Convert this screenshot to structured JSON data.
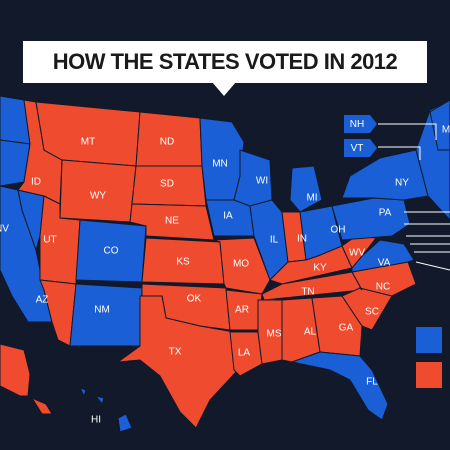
{
  "title": "HOW THE STATES VOTED IN 2012",
  "colors": {
    "background": "#11192a",
    "blue": "#1a5fd6",
    "red": "#ef4b2f",
    "border": "#11192a",
    "callout_line": "#ffffff"
  },
  "legend": {
    "items": [
      {
        "color": "#1a5fd6",
        "label": ""
      },
      {
        "color": "#ef4b2f",
        "label": ""
      }
    ]
  },
  "callouts": [
    {
      "abbr": "NH",
      "party": "blue"
    },
    {
      "abbr": "VT",
      "party": "blue"
    }
  ],
  "states": [
    {
      "abbr": "WA",
      "party": "blue",
      "label": ""
    },
    {
      "abbr": "OR",
      "party": "blue",
      "label": ""
    },
    {
      "abbr": "CA",
      "party": "blue",
      "label": ""
    },
    {
      "abbr": "NV",
      "party": "blue",
      "label": "NV"
    },
    {
      "abbr": "ID",
      "party": "red",
      "label": "ID"
    },
    {
      "abbr": "MT",
      "party": "red",
      "label": "MT"
    },
    {
      "abbr": "WY",
      "party": "red",
      "label": "WY"
    },
    {
      "abbr": "UT",
      "party": "red",
      "label": "UT"
    },
    {
      "abbr": "AZ",
      "party": "red",
      "label": "AZ"
    },
    {
      "abbr": "CO",
      "party": "blue",
      "label": "CO"
    },
    {
      "abbr": "NM",
      "party": "blue",
      "label": "NM"
    },
    {
      "abbr": "ND",
      "party": "red",
      "label": "ND"
    },
    {
      "abbr": "SD",
      "party": "red",
      "label": "SD"
    },
    {
      "abbr": "NE",
      "party": "red",
      "label": "NE"
    },
    {
      "abbr": "KS",
      "party": "red",
      "label": "KS"
    },
    {
      "abbr": "OK",
      "party": "red",
      "label": "OK"
    },
    {
      "abbr": "TX",
      "party": "red",
      "label": "TX"
    },
    {
      "abbr": "MN",
      "party": "blue",
      "label": "MN"
    },
    {
      "abbr": "IA",
      "party": "blue",
      "label": "IA"
    },
    {
      "abbr": "MO",
      "party": "red",
      "label": "MO"
    },
    {
      "abbr": "AR",
      "party": "red",
      "label": "AR"
    },
    {
      "abbr": "LA",
      "party": "red",
      "label": "LA"
    },
    {
      "abbr": "WI",
      "party": "blue",
      "label": "WI"
    },
    {
      "abbr": "IL",
      "party": "blue",
      "label": "IL"
    },
    {
      "abbr": "MI",
      "party": "blue",
      "label": "MI"
    },
    {
      "abbr": "IN",
      "party": "red",
      "label": "IN"
    },
    {
      "abbr": "OH",
      "party": "blue",
      "label": "OH"
    },
    {
      "abbr": "KY",
      "party": "red",
      "label": "KY"
    },
    {
      "abbr": "TN",
      "party": "red",
      "label": "TN"
    },
    {
      "abbr": "MS",
      "party": "red",
      "label": "MS"
    },
    {
      "abbr": "AL",
      "party": "red",
      "label": "AL"
    },
    {
      "abbr": "GA",
      "party": "red",
      "label": "GA"
    },
    {
      "abbr": "FL",
      "party": "blue",
      "label": "FL"
    },
    {
      "abbr": "SC",
      "party": "red",
      "label": "SC"
    },
    {
      "abbr": "NC",
      "party": "red",
      "label": "NC"
    },
    {
      "abbr": "VA",
      "party": "blue",
      "label": "VA"
    },
    {
      "abbr": "WV",
      "party": "red",
      "label": "WV"
    },
    {
      "abbr": "PA",
      "party": "blue",
      "label": "PA"
    },
    {
      "abbr": "NY",
      "party": "blue",
      "label": "NY"
    },
    {
      "abbr": "NE-NEW-ENGLAND",
      "party": "blue",
      "label": ""
    },
    {
      "abbr": "ME",
      "party": "blue",
      "label": "M"
    },
    {
      "abbr": "AK",
      "party": "red",
      "label": ""
    },
    {
      "abbr": "HI",
      "party": "blue",
      "label": "HI"
    }
  ]
}
